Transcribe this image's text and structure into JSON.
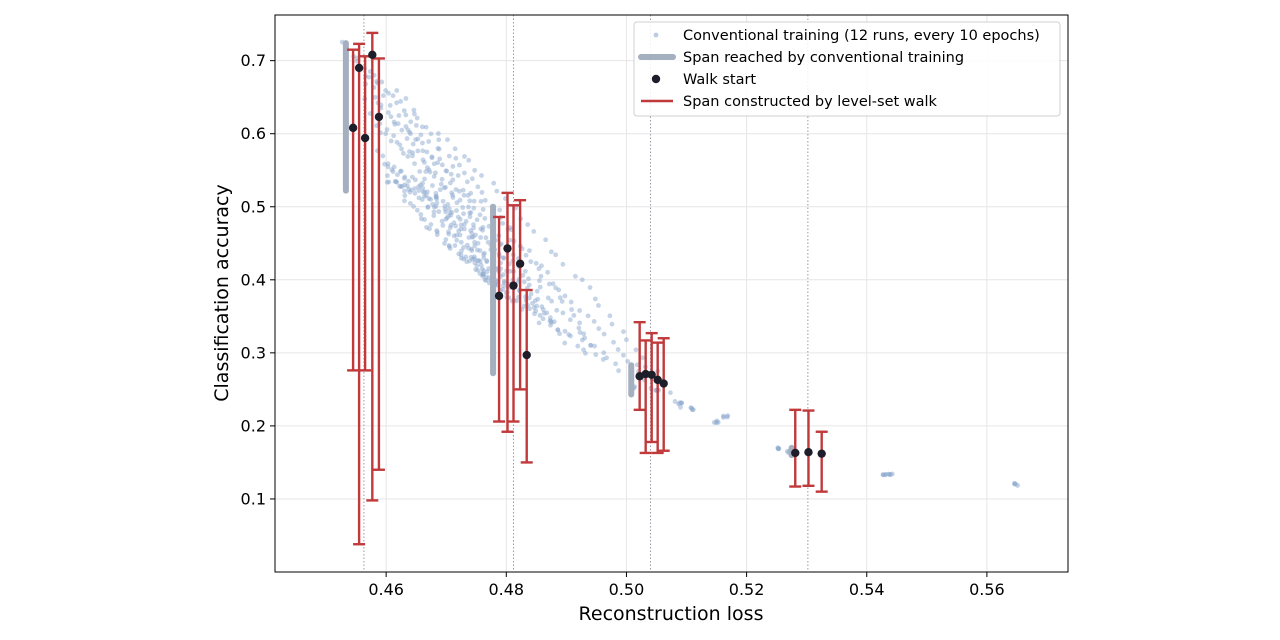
{
  "chart_data": {
    "type": "scatter",
    "title": "",
    "xlabel": "Reconstruction loss",
    "ylabel": "Classification accuracy",
    "xlim": [
      0.4415,
      0.5735
    ],
    "ylim": [
      0.0,
      0.7625
    ],
    "xticks": [
      0.46,
      0.48,
      0.5,
      0.52,
      0.54,
      0.56
    ],
    "xtick_labels": [
      "0.46",
      "0.48",
      "0.50",
      "0.52",
      "0.54",
      "0.56"
    ],
    "yticks": [
      0.1,
      0.2,
      0.3,
      0.4,
      0.5,
      0.6,
      0.7
    ],
    "ytick_labels": [
      "0.1",
      "0.2",
      "0.3",
      "0.4",
      "0.5",
      "0.6",
      "0.7"
    ],
    "grid": true,
    "vertical_reference_lines_x": [
      0.4563,
      0.4812,
      0.504,
      0.5302
    ],
    "legend": {
      "placement": "top-right",
      "entries": [
        {
          "label": "Conventional training (12 runs, every 10 epochs)",
          "marker": "dot",
          "color": "#9fb7d6"
        },
        {
          "label": "Span reached by conventional training",
          "marker": "thick-line",
          "color": "#a4afbf"
        },
        {
          "label": "Walk start",
          "marker": "dot",
          "color": "#1e1e2a"
        },
        {
          "label": "Span constructed by level-set walk",
          "marker": "line",
          "color": "#c0393b"
        }
      ]
    },
    "conventional_training_trajectories": [
      {
        "start": [
          0.4533,
          0.722
        ],
        "end": [
          0.5045,
          0.255
        ]
      },
      {
        "start": [
          0.454,
          0.708
        ],
        "end": [
          0.509,
          0.225
        ]
      },
      {
        "start": [
          0.4548,
          0.7
        ],
        "end": [
          0.4985,
          0.275
        ]
      },
      {
        "start": [
          0.4555,
          0.69
        ],
        "end": [
          0.496,
          0.29
        ]
      },
      {
        "start": [
          0.4562,
          0.67
        ],
        "end": [
          0.493,
          0.3
        ]
      },
      {
        "start": [
          0.457,
          0.65
        ],
        "end": [
          0.49,
          0.315
        ]
      },
      {
        "start": [
          0.4578,
          0.63
        ],
        "end": [
          0.488,
          0.33
        ]
      },
      {
        "start": [
          0.4585,
          0.61
        ],
        "end": [
          0.4855,
          0.345
        ]
      },
      {
        "start": [
          0.459,
          0.58
        ],
        "end": [
          0.483,
          0.36
        ]
      },
      {
        "start": [
          0.4595,
          0.56
        ],
        "end": [
          0.481,
          0.375
        ]
      },
      {
        "start": [
          0.46,
          0.545
        ],
        "end": [
          0.479,
          0.39
        ]
      },
      {
        "start": [
          0.4605,
          0.535
        ],
        "end": [
          0.477,
          0.4
        ]
      }
    ],
    "conventional_late_clusters": [
      {
        "x": 0.501,
        "y": 0.252
      },
      {
        "x": 0.505,
        "y": 0.248
      },
      {
        "x": 0.509,
        "y": 0.23
      },
      {
        "x": 0.511,
        "y": 0.224
      },
      {
        "x": 0.515,
        "y": 0.206
      },
      {
        "x": 0.5165,
        "y": 0.212
      },
      {
        "x": 0.525,
        "y": 0.17
      },
      {
        "x": 0.527,
        "y": 0.165
      },
      {
        "x": 0.5428,
        "y": 0.133
      },
      {
        "x": 0.544,
        "y": 0.134
      },
      {
        "x": 0.5648,
        "y": 0.12
      }
    ],
    "conventional_spans": [
      {
        "x": 0.4533,
        "ymin": 0.522,
        "ymax": 0.724
      },
      {
        "x": 0.4778,
        "ymin": 0.272,
        "ymax": 0.5
      },
      {
        "x": 0.5008,
        "ymin": 0.243,
        "ymax": 0.283
      },
      {
        "x": 0.5275,
        "ymin": 0.16,
        "ymax": 0.17
      }
    ],
    "walk_spans": [
      {
        "x": 0.4545,
        "start": 0.608,
        "ymin": 0.276,
        "ymax": 0.715
      },
      {
        "x": 0.4555,
        "start": 0.69,
        "ymin": 0.038,
        "ymax": 0.723
      },
      {
        "x": 0.4565,
        "start": 0.594,
        "ymin": 0.276,
        "ymax": 0.706
      },
      {
        "x": 0.4577,
        "start": 0.708,
        "ymin": 0.098,
        "ymax": 0.738
      },
      {
        "x": 0.4588,
        "start": 0.623,
        "ymin": 0.14,
        "ymax": 0.703
      },
      {
        "x": 0.4788,
        "start": 0.378,
        "ymin": 0.206,
        "ymax": 0.486
      },
      {
        "x": 0.4802,
        "start": 0.443,
        "ymin": 0.192,
        "ymax": 0.519
      },
      {
        "x": 0.4812,
        "start": 0.392,
        "ymin": 0.206,
        "ymax": 0.502
      },
      {
        "x": 0.4823,
        "start": 0.422,
        "ymin": 0.25,
        "ymax": 0.509
      },
      {
        "x": 0.4834,
        "start": 0.297,
        "ymin": 0.15,
        "ymax": 0.386
      },
      {
        "x": 0.5022,
        "start": 0.268,
        "ymin": 0.222,
        "ymax": 0.342
      },
      {
        "x": 0.5032,
        "start": 0.271,
        "ymin": 0.163,
        "ymax": 0.317
      },
      {
        "x": 0.5042,
        "start": 0.27,
        "ymin": 0.178,
        "ymax": 0.327
      },
      {
        "x": 0.5052,
        "start": 0.263,
        "ymin": 0.163,
        "ymax": 0.314
      },
      {
        "x": 0.5062,
        "start": 0.258,
        "ymin": 0.166,
        "ymax": 0.32
      },
      {
        "x": 0.5281,
        "start": 0.163,
        "ymin": 0.117,
        "ymax": 0.222
      },
      {
        "x": 0.5303,
        "start": 0.164,
        "ymin": 0.118,
        "ymax": 0.221
      },
      {
        "x": 0.5325,
        "start": 0.162,
        "ymin": 0.11,
        "ymax": 0.192
      }
    ]
  },
  "colors": {
    "conventional_points": "#8eaad0",
    "conventional_span": "#a4afbf",
    "walk_start": "#1e1e2a",
    "walk_span": "#c0393b",
    "grid": "#e6e6e6",
    "reference_line": "#9a9aa6"
  }
}
